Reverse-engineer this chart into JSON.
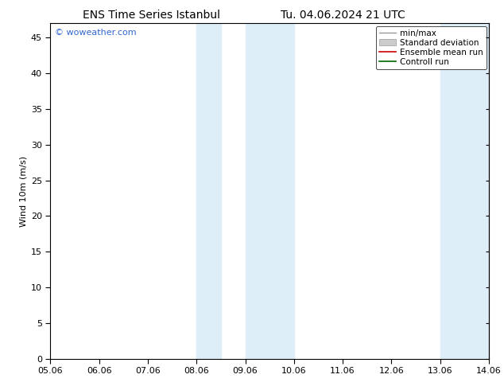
{
  "title_left": "ENS Time Series Istanbul",
  "title_right": "Tu. 04.06.2024 21 UTC",
  "ylabel": "Wind 10m (m/s)",
  "ylim": [
    0,
    47
  ],
  "yticks": [
    0,
    5,
    10,
    15,
    20,
    25,
    30,
    35,
    40,
    45
  ],
  "xlim_start": 0,
  "xlim_end": 9,
  "xtick_labels": [
    "05.06",
    "06.06",
    "07.06",
    "08.06",
    "09.06",
    "10.06",
    "11.06",
    "12.06",
    "13.06",
    "14.06"
  ],
  "shaded_bands": [
    {
      "x_start": 3.0,
      "x_end": 3.5
    },
    {
      "x_start": 4.0,
      "x_end": 5.0
    },
    {
      "x_start": 8.0,
      "x_end": 8.5
    },
    {
      "x_start": 8.5,
      "x_end": 9.0
    }
  ],
  "shade_color": "#ddeef8",
  "background_color": "#ffffff",
  "watermark_text": "© woweather.com",
  "watermark_color": "#3366cc",
  "legend_entries": [
    {
      "label": "min/max",
      "color": "#999999",
      "lw": 1.0,
      "type": "line"
    },
    {
      "label": "Standard deviation",
      "facecolor": "#cccccc",
      "edgecolor": "#999999",
      "type": "patch"
    },
    {
      "label": "Ensemble mean run",
      "color": "#cc0000",
      "lw": 1.2,
      "type": "line"
    },
    {
      "label": "Controll run",
      "color": "#006600",
      "lw": 1.2,
      "type": "line"
    }
  ],
  "font_size_title": 10,
  "font_size_axis": 8,
  "font_size_legend": 7.5,
  "font_size_watermark": 8,
  "tick_color": "#000000",
  "spine_color": "#000000"
}
